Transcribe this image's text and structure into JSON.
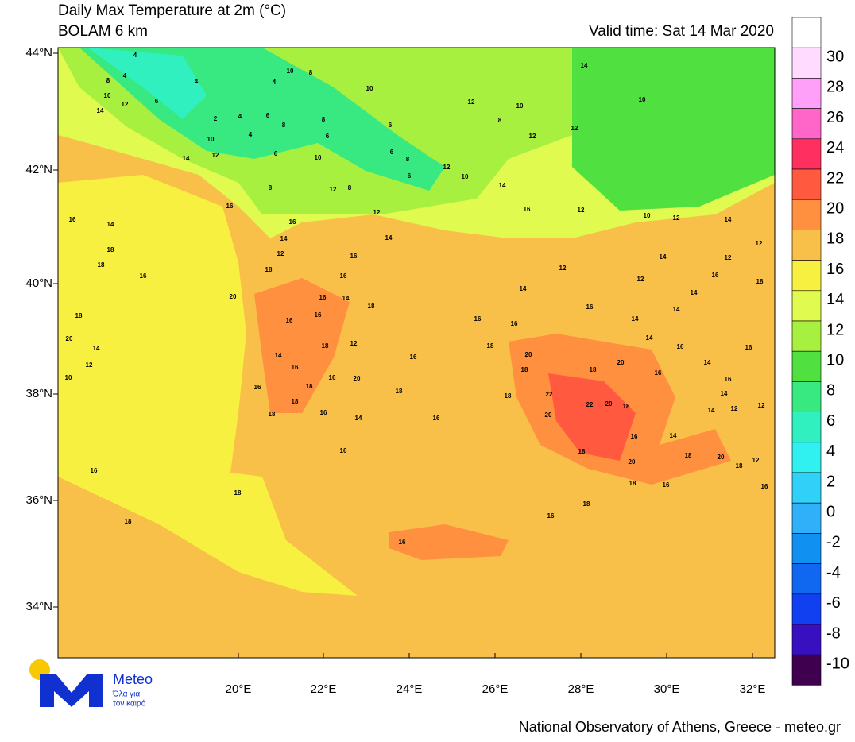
{
  "header": {
    "title": "Daily Max Temperature at 2m (°C)",
    "model": "BOLAM 6 km",
    "valid_time": "Valid time: Sat 14 Mar 2020"
  },
  "lat_labels": [
    "44°N",
    "42°N",
    "40°N",
    "38°N",
    "36°N",
    "34°N"
  ],
  "lon_labels": [
    "20°E",
    "22°E",
    "24°E",
    "26°E",
    "28°E",
    "30°E",
    "32°E"
  ],
  "colorbar": {
    "labels": [
      "30",
      "28",
      "26",
      "24",
      "22",
      "20",
      "18",
      "16",
      "14",
      "12",
      "10",
      "8",
      "6",
      "4",
      "2",
      "0",
      "-2",
      "-4",
      "-6",
      "-8",
      "-10"
    ],
    "colors": [
      "#ffffff",
      "#ffdcff",
      "#ffa0f8",
      "#ff66c8",
      "#ff3060",
      "#ff5a40",
      "#ff9040",
      "#f8c048",
      "#f8f040",
      "#e0fa50",
      "#a8f040",
      "#50e040",
      "#38e880",
      "#30f0c0",
      "#30f0f0",
      "#30d0f8",
      "#30b0f8",
      "#1090f0",
      "#1068f0",
      "#1040f0",
      "#3810c0",
      "#400050"
    ]
  },
  "logo": {
    "name": "Meteo",
    "tagline_1": "Όλα για",
    "tagline_2": "τον καιρό"
  },
  "footer": "National Observatory of Athens, Greece - meteo.gr",
  "contour_labels": [
    "4",
    "4",
    "8",
    "10",
    "12",
    "14",
    "6",
    "4",
    "4",
    "10",
    "8",
    "2",
    "4",
    "4",
    "6",
    "8",
    "10",
    "12",
    "14",
    "6",
    "10",
    "8",
    "6",
    "8",
    "12",
    "8",
    "10",
    "6",
    "6",
    "8",
    "6",
    "12",
    "10",
    "12",
    "10",
    "8",
    "12",
    "14",
    "10",
    "12",
    "14",
    "16",
    "12",
    "10",
    "12",
    "14",
    "12",
    "14",
    "12",
    "16",
    "18",
    "12",
    "12",
    "14",
    "14",
    "16",
    "14",
    "14",
    "14",
    "16",
    "16",
    "14",
    "16",
    "14",
    "12",
    "14",
    "12",
    "16",
    "18",
    "20",
    "22",
    "22",
    "20",
    "18",
    "20",
    "16",
    "14",
    "18",
    "20",
    "18",
    "12",
    "16",
    "16",
    "18",
    "20",
    "18",
    "18",
    "16",
    "16",
    "16",
    "18",
    "20",
    "18",
    "18",
    "16",
    "14",
    "16",
    "18",
    "18",
    "16",
    "18",
    "20",
    "14",
    "12",
    "10",
    "12",
    "14",
    "16",
    "12",
    "14",
    "16",
    "16",
    "18",
    "20",
    "16",
    "14",
    "16",
    "16",
    "18",
    "18",
    "12",
    "14",
    "16",
    "16",
    "20",
    "16",
    "18",
    "18",
    "18",
    "16",
    "14",
    "18",
    "16",
    "16",
    "16",
    "16",
    "18",
    "18",
    "16"
  ]
}
